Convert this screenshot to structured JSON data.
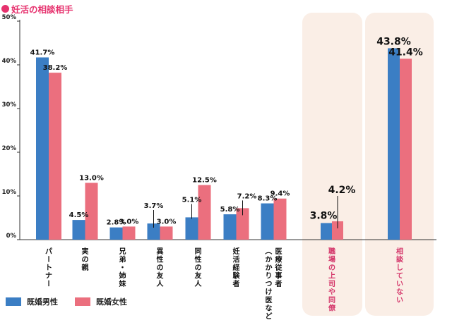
{
  "chart_data": {
    "type": "bar",
    "title": "妊活の相談相手",
    "ylim": [
      0,
      50
    ],
    "yticks": [
      "0%",
      "10%",
      "20%",
      "30%",
      "40%",
      "50%"
    ],
    "categories": [
      "パートナー",
      "実の親",
      "兄弟・姉妹",
      "異性の友人",
      "同性の友人",
      "妊活経験者",
      "医療従事者\n（かかりつけ医など）",
      "職場の上司や同僚",
      "相談していない"
    ],
    "highlighted": [
      7,
      8
    ],
    "series": [
      {
        "name": "既婚男性",
        "color": "#3B7EC4",
        "values": [
          41.7,
          4.5,
          2.8,
          3.7,
          5.1,
          5.8,
          8.3,
          3.8,
          43.8
        ]
      },
      {
        "name": "既婚女性",
        "color": "#EB6F7E",
        "values": [
          38.2,
          13.0,
          3.0,
          3.0,
          12.5,
          7.2,
          9.4,
          4.2,
          41.4
        ]
      }
    ],
    "value_labels": {
      "male": [
        "41.7%",
        "4.5%",
        "2.8%",
        "3.7%",
        "5.1%",
        "5.8%",
        "8.3%",
        "3.8%",
        "43.8%"
      ],
      "female": [
        "38.2%",
        "13.0%",
        "3.0%",
        "3.0%",
        "12.5%",
        "7.2%",
        "9.4%",
        "4.2%",
        "41.4%"
      ]
    },
    "colors": {
      "male": "#3B7EC4",
      "female": "#EB6F7E",
      "highlight_bg": "#FAEEE6",
      "highlight_text": "#D4366A",
      "title": "#E6326E"
    }
  }
}
